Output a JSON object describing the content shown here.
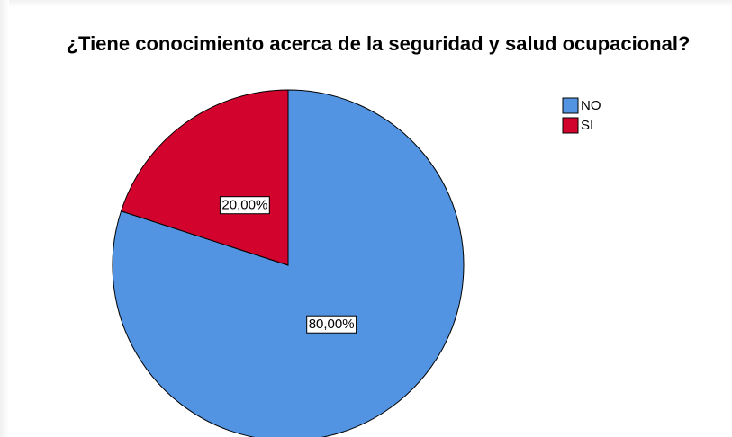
{
  "chart_data": {
    "type": "pie",
    "title": "¿Tiene conocimiento acerca de la seguridad y salud ocupacional?",
    "categories": [
      "NO",
      "SI"
    ],
    "values": [
      80,
      20
    ],
    "value_labels": [
      "80,00%",
      "20,00%"
    ],
    "colors": [
      "#5294e2",
      "#d2042d"
    ],
    "legend": "top-right"
  }
}
